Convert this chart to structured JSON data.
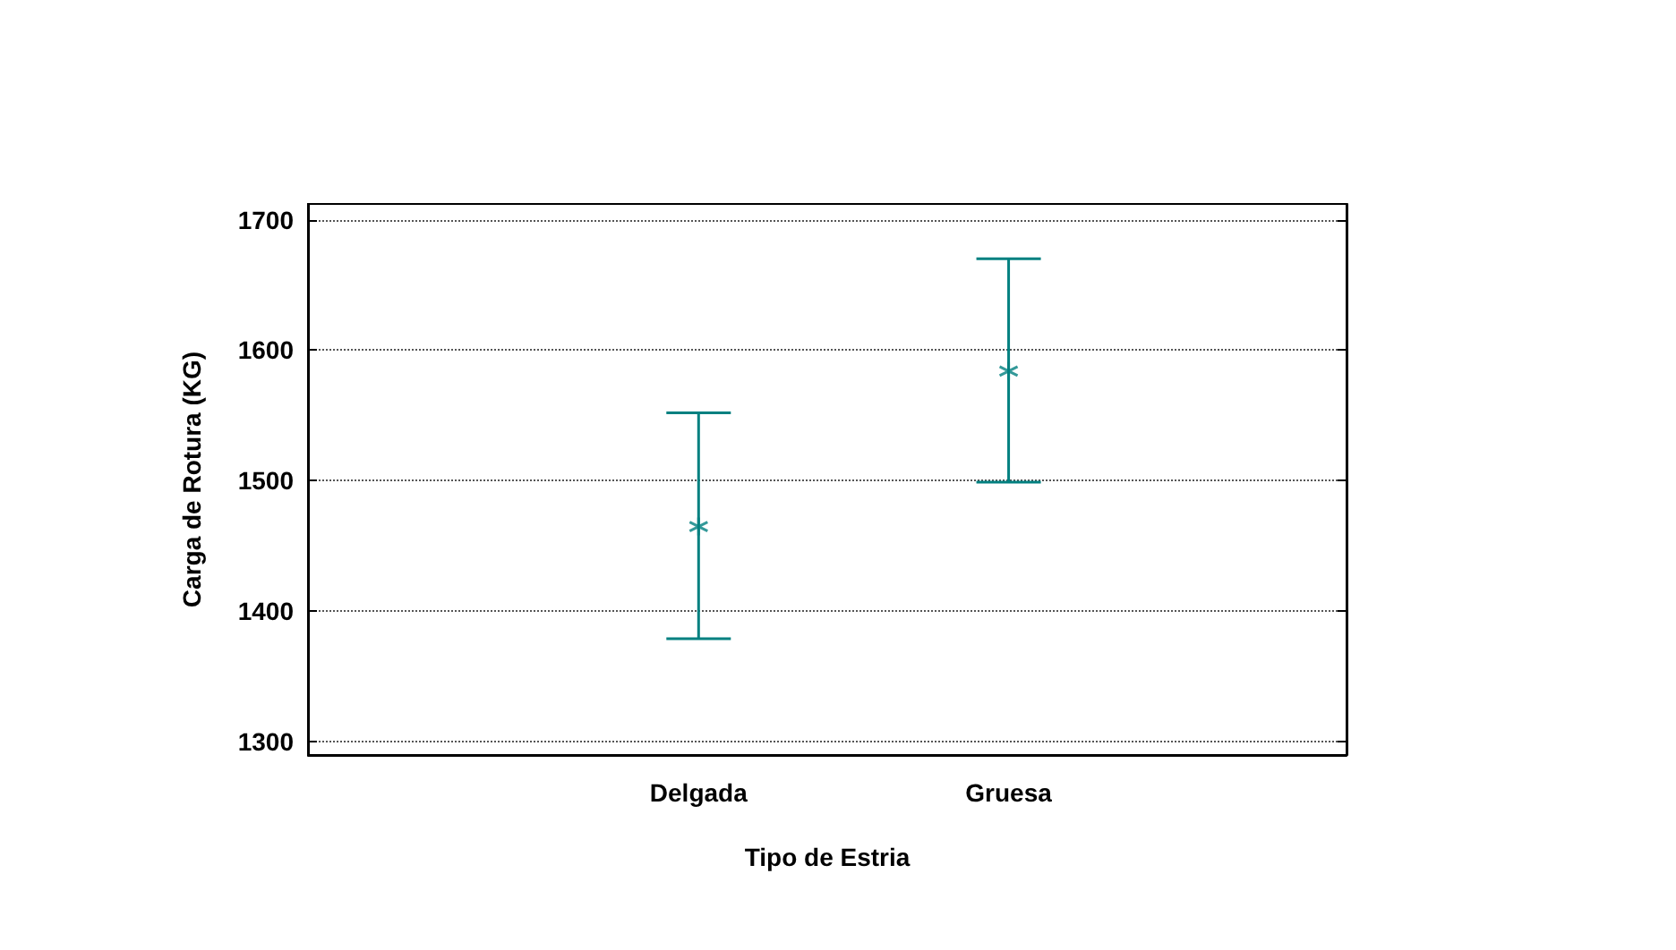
{
  "chart_data": {
    "type": "scatter",
    "categories": [
      "Delgada",
      "Gruesa"
    ],
    "series": [
      {
        "color": "#008080",
        "values": [
          1465,
          1584
        ],
        "errors": [
          [
            1379,
            1552
          ],
          [
            1499,
            1670
          ]
        ]
      }
    ],
    "xlabel": "Tipo de Estria",
    "ylabel": "Carga de Rotura (KG)",
    "ylim": [
      1290,
      1712
    ],
    "yticks": [
      1300,
      1400,
      1500,
      1600,
      1700
    ],
    "grid": "y",
    "marker": "cross"
  }
}
